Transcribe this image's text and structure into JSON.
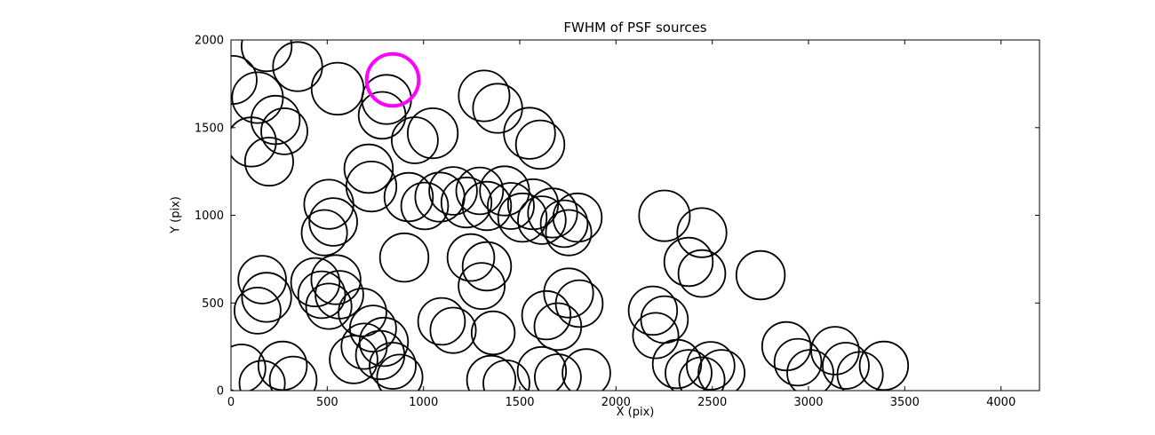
{
  "figure": {
    "title": "FWHM of PSF sources",
    "xlabel": "X (pix)",
    "ylabel": "Y (pix)"
  },
  "chart_data": {
    "type": "scatter",
    "title": "FWHM of PSF sources",
    "xlabel": "X (pix)",
    "ylabel": "Y (pix)",
    "xlim": [
      0,
      4200
    ],
    "ylim": [
      0,
      2000
    ],
    "xticks": [
      0,
      500,
      1000,
      1500,
      2000,
      2500,
      3000,
      3500,
      4000
    ],
    "yticks": [
      0,
      500,
      1000,
      1500,
      2000
    ],
    "grid": false,
    "legend": "none",
    "marker": "open-circle",
    "edge_color": "#000000",
    "highlight_color": "#ff00ff",
    "frame_color": "#000000",
    "points_format": "x,y,r (data units, r in x-pixels)",
    "points": [
      [
        185,
        1964,
        130
      ],
      [
        346,
        1848,
        128
      ],
      [
        9,
        1772,
        125
      ],
      [
        138,
        1671,
        132
      ],
      [
        231,
        1544,
        126
      ],
      [
        554,
        1722,
        135
      ],
      [
        808,
        1661,
        128
      ],
      [
        785,
        1570,
        122
      ],
      [
        1315,
        1681,
        132
      ],
      [
        1385,
        1610,
        128
      ],
      [
        1048,
        1468,
        130
      ],
      [
        955,
        1428,
        120
      ],
      [
        1551,
        1468,
        133
      ],
      [
        1606,
        1403,
        126
      ],
      [
        106,
        1418,
        128
      ],
      [
        198,
        1306,
        125
      ],
      [
        277,
        1479,
        120
      ],
      [
        715,
        1266,
        126
      ],
      [
        729,
        1164,
        130
      ],
      [
        508,
        1063,
        128
      ],
      [
        531,
        962,
        124
      ],
      [
        485,
        901,
        118
      ],
      [
        923,
        1104,
        126
      ],
      [
        1006,
        1053,
        122
      ],
      [
        1085,
        1104,
        128
      ],
      [
        1154,
        1139,
        124
      ],
      [
        1223,
        1073,
        130
      ],
      [
        1292,
        1139,
        122
      ],
      [
        1329,
        1053,
        126
      ],
      [
        1421,
        1139,
        128
      ],
      [
        1454,
        1053,
        120
      ],
      [
        1514,
        987,
        126
      ],
      [
        1569,
        1063,
        130
      ],
      [
        1615,
        972,
        124
      ],
      [
        1671,
        1013,
        128
      ],
      [
        1731,
        952,
        122
      ],
      [
        1800,
        987,
        126
      ],
      [
        1754,
        901,
        118
      ],
      [
        2252,
        997,
        132
      ],
      [
        2446,
        901,
        128
      ],
      [
        2751,
        658,
        126
      ],
      [
        162,
        633,
        124
      ],
      [
        185,
        532,
        128
      ],
      [
        138,
        456,
        120
      ],
      [
        438,
        618,
        126
      ],
      [
        471,
        547,
        122
      ],
      [
        545,
        633,
        128
      ],
      [
        563,
        547,
        124
      ],
      [
        508,
        481,
        118
      ],
      [
        900,
        759,
        126
      ],
      [
        1246,
        759,
        122
      ],
      [
        1329,
        709,
        126
      ],
      [
        1302,
        597,
        120
      ],
      [
        1754,
        557,
        128
      ],
      [
        1809,
        496,
        122
      ],
      [
        2377,
        734,
        126
      ],
      [
        2446,
        668,
        122
      ],
      [
        683,
        446,
        124
      ],
      [
        738,
        354,
        120
      ],
      [
        794,
        278,
        126
      ],
      [
        692,
        253,
        118
      ],
      [
        1094,
        395,
        122
      ],
      [
        1154,
        344,
        118
      ],
      [
        1362,
        329,
        112
      ],
      [
        1638,
        430,
        126
      ],
      [
        1698,
        365,
        122
      ],
      [
        2192,
        456,
        126
      ],
      [
        2252,
        405,
        122
      ],
      [
        2206,
        314,
        118
      ],
      [
        55,
        127,
        124
      ],
      [
        268,
        142,
        126
      ],
      [
        323,
        61,
        122
      ],
      [
        162,
        41,
        118
      ],
      [
        637,
        177,
        124
      ],
      [
        775,
        203,
        126
      ],
      [
        840,
        142,
        120
      ],
      [
        877,
        76,
        118
      ],
      [
        1352,
        61,
        126
      ],
      [
        1431,
        41,
        120
      ],
      [
        1615,
        111,
        126
      ],
      [
        1698,
        76,
        120
      ],
      [
        1846,
        101,
        124
      ],
      [
        2317,
        152,
        126
      ],
      [
        2377,
        101,
        120
      ],
      [
        2446,
        61,
        118
      ],
      [
        2492,
        142,
        124
      ],
      [
        2548,
        101,
        120
      ],
      [
        2885,
        253,
        126
      ],
      [
        2945,
        162,
        122
      ],
      [
        3009,
        101,
        120
      ],
      [
        3138,
        228,
        124
      ],
      [
        3194,
        142,
        120
      ],
      [
        3268,
        91,
        118
      ],
      [
        3392,
        142,
        126
      ]
    ],
    "highlight": {
      "x": 840,
      "y": 1772,
      "r": 135
    }
  }
}
